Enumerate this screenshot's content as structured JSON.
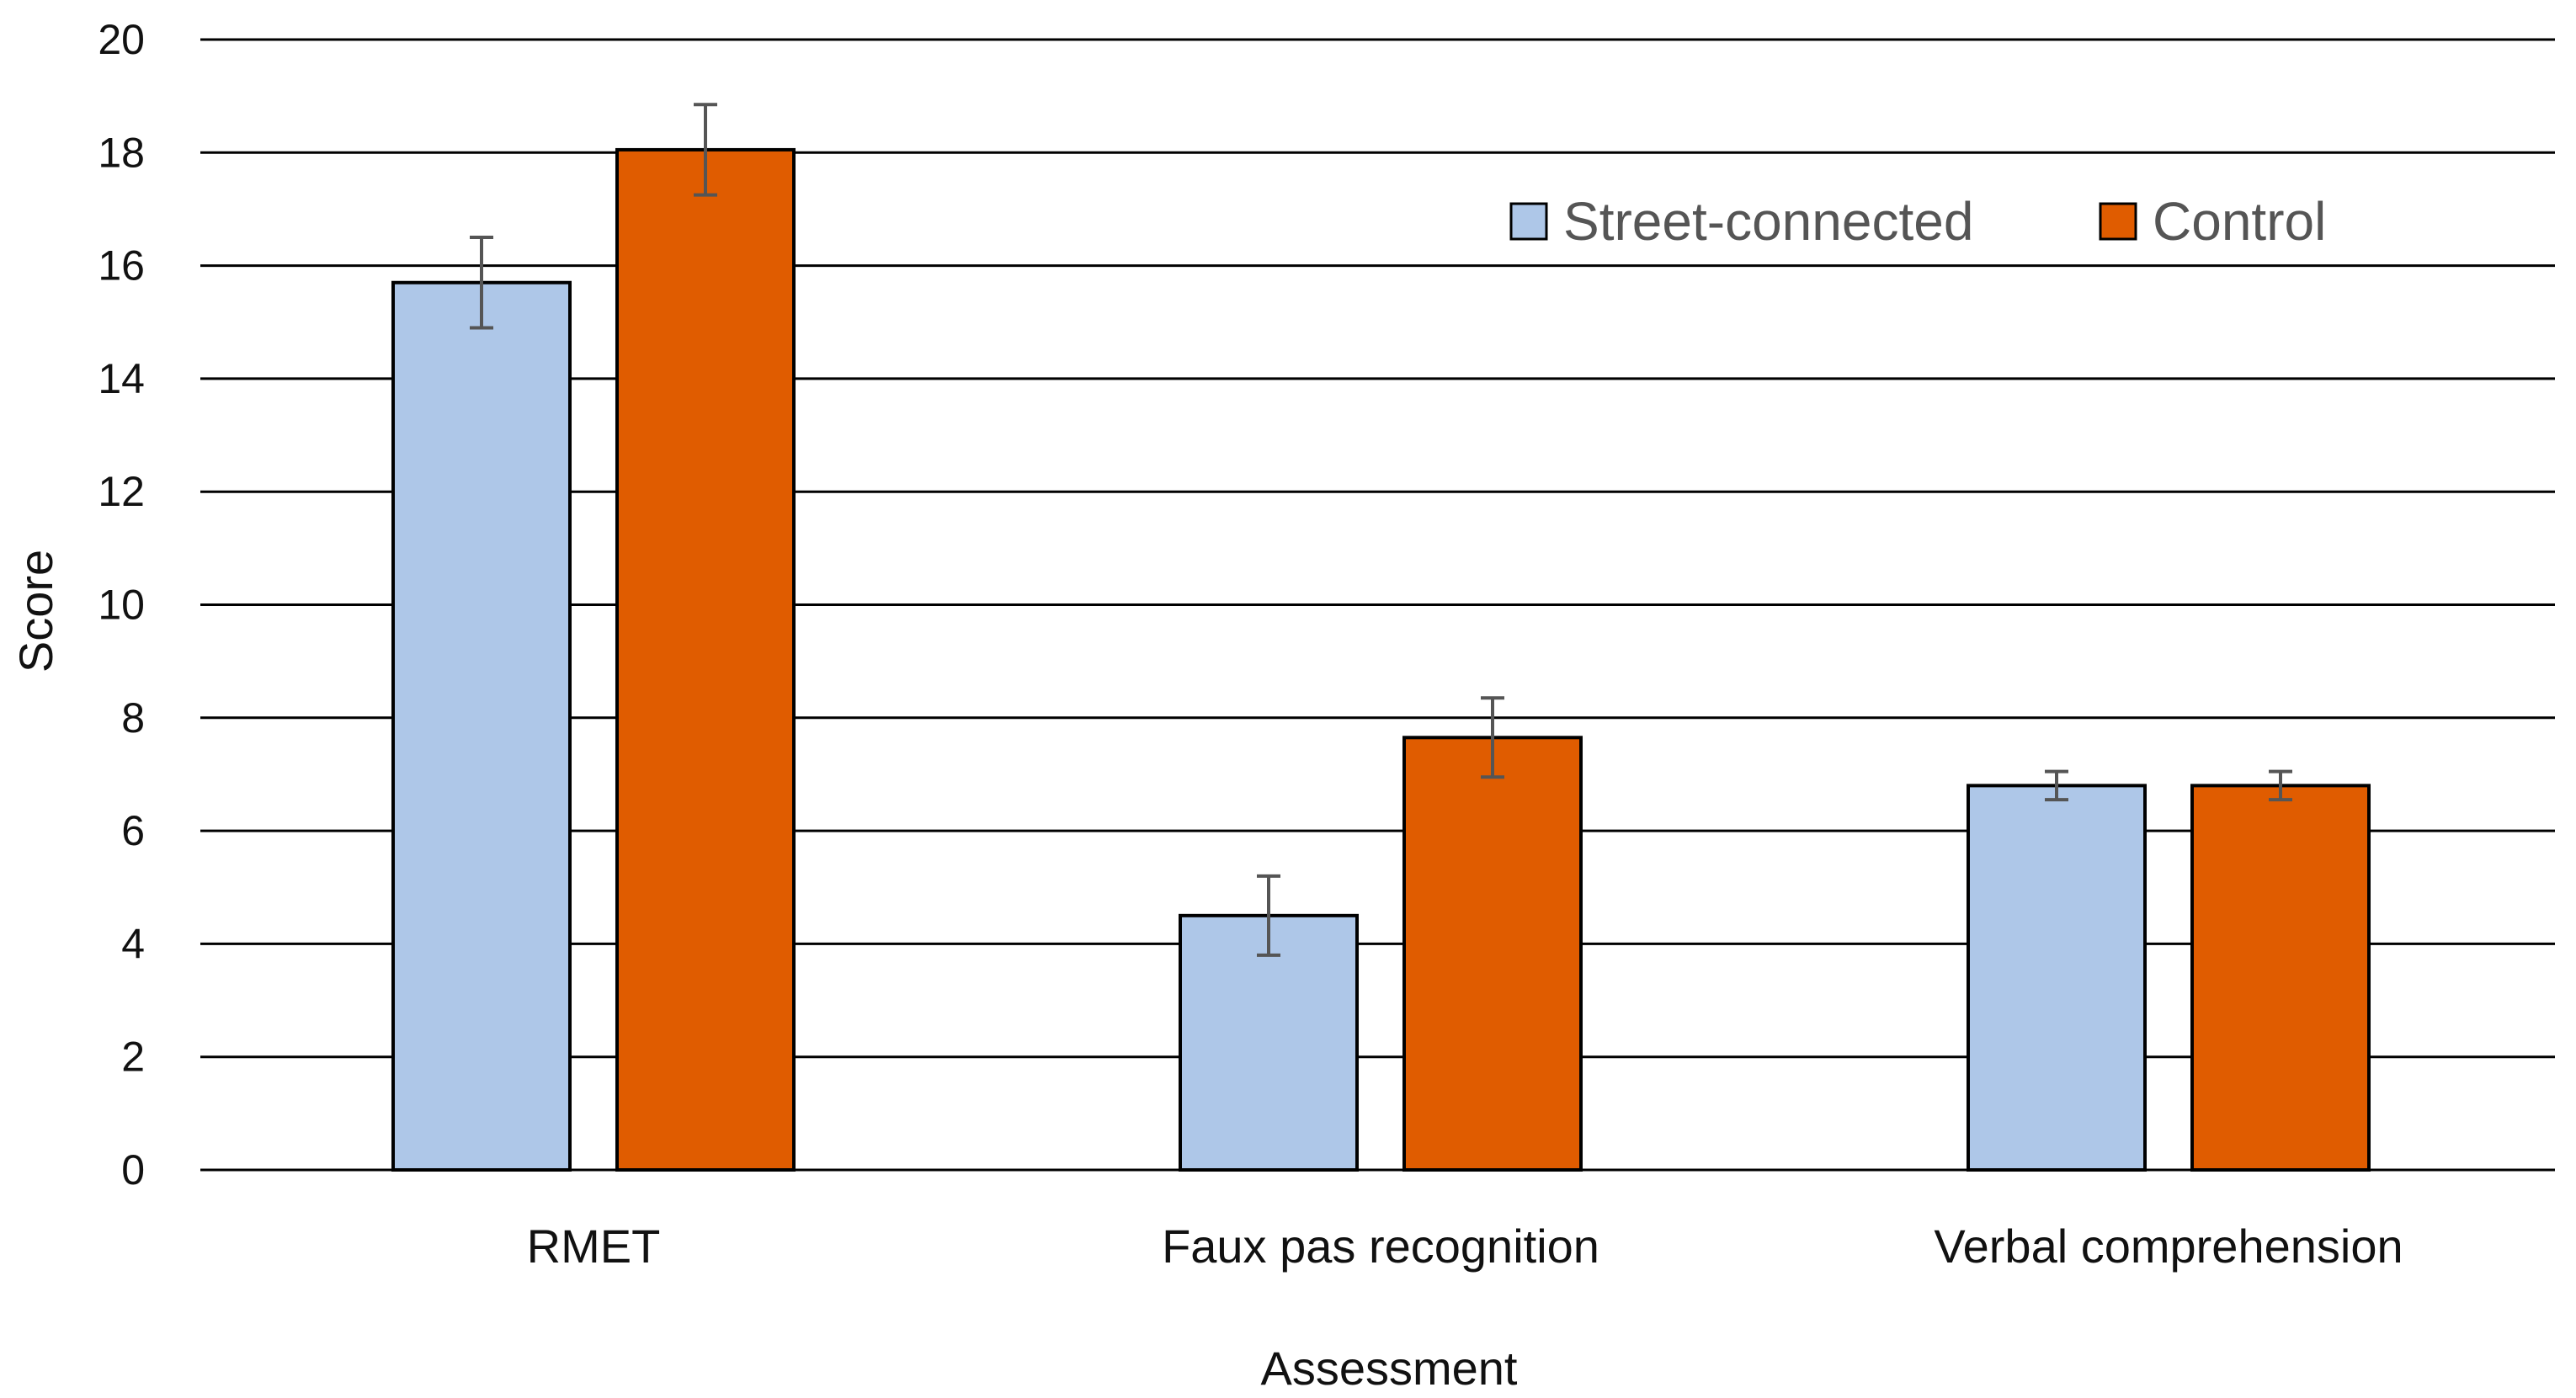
{
  "chart_data": {
    "type": "bar",
    "title": "",
    "xlabel": "Assessment",
    "ylabel": "Score",
    "ylim": [
      0,
      20
    ],
    "yticks": [
      0,
      2,
      4,
      6,
      8,
      10,
      12,
      14,
      16,
      18,
      20
    ],
    "grid": true,
    "legend_position": "top-right",
    "categories": [
      "RMET",
      "Faux pas recognition",
      "Verbal comprehension"
    ],
    "series": [
      {
        "name": "Street-connected",
        "color": "#aec7e8",
        "values": [
          15.7,
          4.5,
          6.8
        ],
        "errors": [
          0.8,
          0.7,
          0.25
        ]
      },
      {
        "name": "Control",
        "color": "#e05c00",
        "values": [
          18.05,
          7.65,
          6.8
        ],
        "errors": [
          0.8,
          0.7,
          0.25
        ]
      }
    ]
  }
}
